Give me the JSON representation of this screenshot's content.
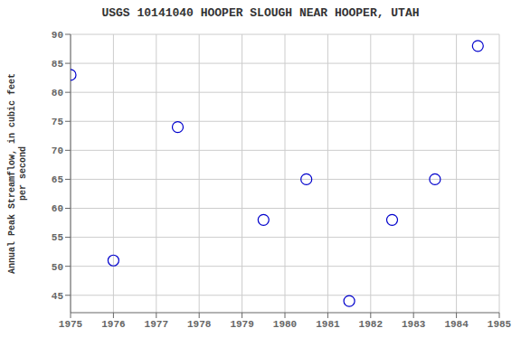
{
  "chart_data": {
    "type": "scatter",
    "title": "USGS 10141040 HOOPER SLOUGH NEAR HOOPER, UTAH",
    "ylabel": "Annual Peak Streamflow, in cubic feet\nper second",
    "x": [
      1975,
      1976,
      1977.5,
      1979.5,
      1980.5,
      1981.5,
      1982.5,
      1983.5,
      1984.5
    ],
    "values": [
      83,
      51,
      74,
      58,
      65,
      44,
      58,
      65,
      88
    ],
    "xlim": [
      1975,
      1985
    ],
    "ylim": [
      42,
      90
    ],
    "xticks": [
      1975,
      1976,
      1977,
      1978,
      1979,
      1980,
      1981,
      1982,
      1983,
      1984,
      1985
    ],
    "yticks": [
      45,
      50,
      55,
      60,
      65,
      70,
      75,
      80,
      85,
      90
    ],
    "grid": true,
    "color": "#0000cc",
    "marker": "circle"
  }
}
